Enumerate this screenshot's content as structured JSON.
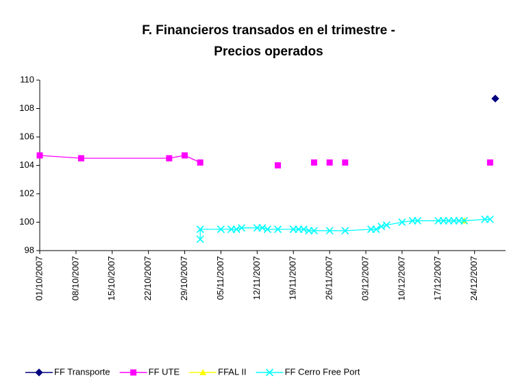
{
  "chart_data": {
    "type": "line",
    "title": [
      "F. Financieros transados en el trimestre -",
      "Precios operados"
    ],
    "xlim": [
      "2007-10-01",
      "2007-12-30"
    ],
    "xticks": [
      {
        "value": "2007-10-01",
        "label": "01/10/2007"
      },
      {
        "value": "2007-10-08",
        "label": "08/10/2007"
      },
      {
        "value": "2007-10-15",
        "label": "15/10/2007"
      },
      {
        "value": "2007-10-22",
        "label": "22/10/2007"
      },
      {
        "value": "2007-10-29",
        "label": "29/10/2007"
      },
      {
        "value": "2007-11-05",
        "label": "05/11/2007"
      },
      {
        "value": "2007-11-12",
        "label": "12/11/2007"
      },
      {
        "value": "2007-11-19",
        "label": "19/11/2007"
      },
      {
        "value": "2007-11-26",
        "label": "26/11/2007"
      },
      {
        "value": "2007-12-03",
        "label": "03/12/2007"
      },
      {
        "value": "2007-12-10",
        "label": "10/12/2007"
      },
      {
        "value": "2007-12-17",
        "label": "17/12/2007"
      },
      {
        "value": "2007-12-24",
        "label": "24/12/2007"
      }
    ],
    "ylim": [
      98,
      110
    ],
    "yticks": [
      98,
      100,
      102,
      104,
      106,
      108,
      110
    ],
    "grid": false,
    "legend": "bottom",
    "series": [
      {
        "name": "FF Transporte",
        "color": "#000080",
        "marker": "diamond",
        "x": [
          "2007-12-28"
        ],
        "values": [
          108.7
        ]
      },
      {
        "name": "FF UTE",
        "color": "#ff00ff",
        "marker": "square",
        "x": [
          "2007-10-01",
          "2007-10-09",
          "2007-10-26",
          "2007-10-29",
          "2007-11-01",
          null,
          "2007-11-16",
          null,
          "2007-11-23",
          null,
          "2007-11-26",
          null,
          "2007-11-29",
          null,
          "2007-12-27"
        ],
        "values": [
          104.7,
          104.5,
          104.5,
          104.7,
          104.2,
          null,
          104.0,
          null,
          104.2,
          null,
          104.2,
          null,
          104.2,
          null,
          104.2
        ]
      },
      {
        "name": "FFAL II",
        "color": "#ffff00",
        "marker": "triangle",
        "x": [
          "2007-12-22"
        ],
        "values": [
          100.1
        ]
      },
      {
        "name": "FF Cerro Free Port",
        "color": "#00ffff",
        "marker": "x",
        "x": [
          "2007-11-01",
          "2007-11-01",
          "2007-11-05",
          "2007-11-07",
          "2007-11-08",
          "2007-11-09",
          "2007-11-12",
          "2007-11-13",
          "2007-11-14",
          "2007-11-16",
          "2007-11-19",
          "2007-11-20",
          "2007-11-21",
          "2007-11-22",
          "2007-11-23",
          "2007-11-26",
          "2007-11-29",
          "2007-12-04",
          "2007-12-05",
          "2007-12-06",
          "2007-12-07",
          "2007-12-10",
          "2007-12-12",
          "2007-12-13",
          "2007-12-17",
          "2007-12-18",
          "2007-12-19",
          "2007-12-20",
          "2007-12-21",
          "2007-12-22",
          "2007-12-26",
          "2007-12-27"
        ],
        "values": [
          98.8,
          99.5,
          99.5,
          99.5,
          99.5,
          99.6,
          99.6,
          99.6,
          99.5,
          99.5,
          99.5,
          99.5,
          99.5,
          99.4,
          99.4,
          99.4,
          99.4,
          99.5,
          99.5,
          99.7,
          99.8,
          100.0,
          100.1,
          100.1,
          100.1,
          100.1,
          100.1,
          100.1,
          100.1,
          100.1,
          100.2,
          100.2
        ]
      }
    ]
  }
}
